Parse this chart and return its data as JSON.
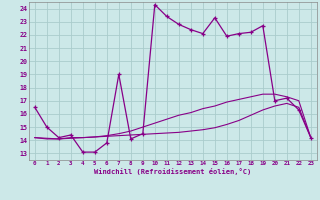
{
  "xlabel": "Windchill (Refroidissement éolien,°C)",
  "bg_color": "#cce8e8",
  "grid_color": "#aacccc",
  "line_color": "#880088",
  "xlim": [
    -0.5,
    23.5
  ],
  "ylim": [
    12.5,
    24.5
  ],
  "xticks": [
    0,
    1,
    2,
    3,
    4,
    5,
    6,
    7,
    8,
    9,
    10,
    11,
    12,
    13,
    14,
    15,
    16,
    17,
    18,
    19,
    20,
    21,
    22,
    23
  ],
  "yticks": [
    13,
    14,
    15,
    16,
    17,
    18,
    19,
    20,
    21,
    22,
    23,
    24
  ],
  "main_line_x": [
    0,
    1,
    2,
    3,
    4,
    5,
    6,
    7,
    8,
    9,
    10,
    11,
    12,
    13,
    14,
    15,
    16,
    17,
    18,
    19,
    20,
    21,
    22,
    23
  ],
  "main_line_y": [
    16.5,
    15.0,
    14.2,
    14.4,
    13.1,
    13.1,
    13.8,
    19.0,
    14.1,
    14.5,
    24.3,
    23.4,
    22.8,
    22.4,
    22.1,
    23.3,
    21.9,
    22.1,
    22.2,
    22.7,
    17.0,
    17.2,
    16.3,
    14.2
  ],
  "line2_x": [
    0,
    1,
    2,
    3,
    4,
    5,
    6,
    7,
    8,
    9,
    10,
    11,
    12,
    13,
    14,
    15,
    16,
    17,
    18,
    19,
    20,
    21,
    22,
    23
  ],
  "line2_y": [
    14.2,
    14.15,
    14.1,
    14.15,
    14.2,
    14.25,
    14.3,
    14.35,
    14.4,
    14.45,
    14.5,
    14.55,
    14.6,
    14.7,
    14.8,
    14.95,
    15.2,
    15.5,
    15.9,
    16.3,
    16.6,
    16.8,
    16.5,
    14.2
  ],
  "line3_x": [
    0,
    1,
    2,
    3,
    4,
    5,
    6,
    7,
    8,
    9,
    10,
    11,
    12,
    13,
    14,
    15,
    16,
    17,
    18,
    19,
    20,
    21,
    22,
    23
  ],
  "line3_y": [
    14.2,
    14.1,
    14.1,
    14.2,
    14.2,
    14.25,
    14.35,
    14.5,
    14.7,
    15.0,
    15.3,
    15.6,
    15.9,
    16.1,
    16.4,
    16.6,
    16.9,
    17.1,
    17.3,
    17.5,
    17.5,
    17.3,
    17.0,
    14.2
  ]
}
